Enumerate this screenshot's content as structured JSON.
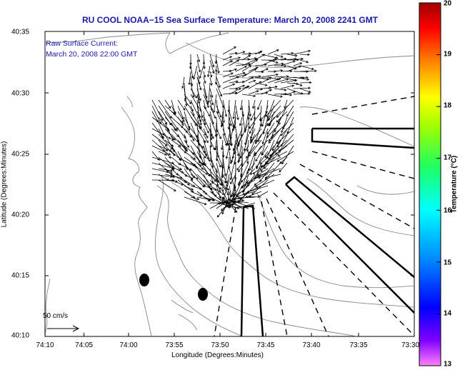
{
  "map": {
    "title": "RU COOL  NOAA−15  Sea Surface Temperature:  March 20, 2008 2241 GMT",
    "annotation_line1": "Raw Surface Current:",
    "annotation_line2": "March 20, 2008 22:00 GMT",
    "x_axis_label": "Longitude (Degrees:Minutes)",
    "y_axis_label": "Latitude (Degrees:Minutes)",
    "x_ticks": [
      "74:10",
      "74:05",
      "74:00",
      "73:55",
      "73:50",
      "73:45",
      "73:40",
      "73:35",
      "73:30"
    ],
    "y_ticks": [
      "40:35",
      "40:30",
      "40:25",
      "40:20",
      "40:15",
      "40:10"
    ],
    "scale_label": "50 cm/s"
  },
  "colorbar": {
    "label": "Temperature (°C)",
    "ticks": [
      "20",
      "19",
      "18",
      "17",
      "16",
      "15",
      "14",
      "13"
    ],
    "min": 13,
    "max": 20
  },
  "colors": {
    "title_blue": "#1a1aa8",
    "contour_gray": "#888888",
    "arrow_black": "#000000"
  }
}
